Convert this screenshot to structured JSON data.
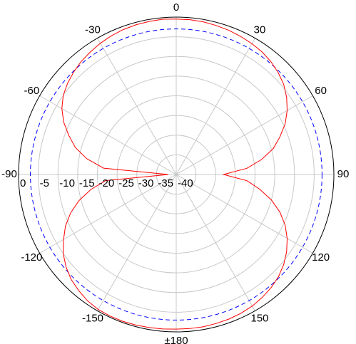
{
  "chart_data": {
    "type": "polar",
    "angle_zero": "top",
    "angle_direction": "clockwise",
    "x": [
      -180,
      -175,
      -170,
      -165,
      -160,
      -155,
      -150,
      -145,
      -140,
      -135,
      -130,
      -125,
      -120,
      -115,
      -110,
      -105,
      -100,
      -95,
      -90,
      -85,
      -80,
      -75,
      -70,
      -65,
      -60,
      -55,
      -50,
      -45,
      -40,
      -35,
      -30,
      -25,
      -20,
      -15,
      -10,
      -5,
      0,
      5,
      10,
      15,
      20,
      25,
      30,
      35,
      40,
      45,
      50,
      55,
      60,
      65,
      70,
      75,
      80,
      85,
      90,
      95,
      100,
      105,
      110,
      115,
      120,
      125,
      130,
      135,
      140,
      145,
      150,
      155,
      160,
      165,
      170,
      175,
      180
    ],
    "series": [
      {
        "color": "#ff0000",
        "values": [
          -0.7,
          -0.6,
          -0.5,
          -0.4,
          -0.3,
          -0.3,
          -0.4,
          -0.8,
          -1.5,
          -2.3,
          -3.5,
          -5.0,
          -7.0,
          -9.0,
          -11.5,
          -14.5,
          -18.0,
          -22.0,
          -38.0,
          -21.5,
          -17.0,
          -13.5,
          -11.0,
          -8.5,
          -6.5,
          -5.0,
          -4.0,
          -3.2,
          -2.5,
          -2.0,
          -1.5,
          -1.1,
          -0.8,
          -0.6,
          -0.5,
          -0.4,
          -0.5,
          -0.5,
          -0.6,
          -0.8,
          -1.0,
          -1.3,
          -1.6,
          -2.0,
          -2.6,
          -3.4,
          -4.4,
          -5.8,
          -7.5,
          -9.5,
          -12.0,
          -14.5,
          -18.0,
          -22.0,
          -28.0,
          -22.0,
          -18.5,
          -15.0,
          -12.0,
          -9.5,
          -7.5,
          -5.8,
          -4.4,
          -3.3,
          -2.5,
          -1.9,
          -1.4,
          -1.1,
          -0.9,
          -0.8,
          -0.7,
          -0.7,
          -0.7
        ]
      }
    ],
    "reference_level": -3,
    "reference_color": "#0000ff",
    "rlim": [
      -40,
      0
    ],
    "rticks": [
      0,
      -5,
      -10,
      -15,
      -20,
      -25,
      -30,
      -35,
      -40
    ],
    "xticks": [
      0,
      30,
      60,
      90,
      120,
      150,
      {
        "value": 180,
        "label": "±180"
      },
      -150,
      -120,
      -90,
      -60,
      -30
    ],
    "grid": true
  }
}
